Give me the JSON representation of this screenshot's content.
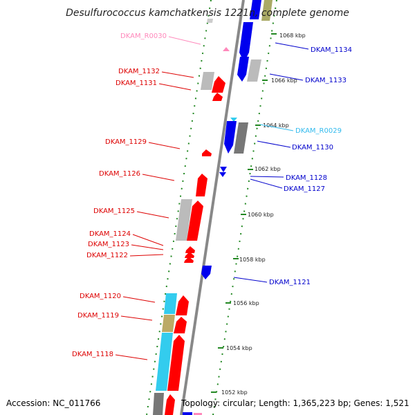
{
  "title": "Desulfurococcus kamchatkensis 1221n, complete genome",
  "footer": {
    "accession": "Accession: NC_011766",
    "info": "Topology: circular; Length: 1,365,223 bp; Genes: 1,521"
  },
  "colors": {
    "red": "#ff0000",
    "blue": "#0000ee",
    "pink": "#ff88bb",
    "cyan": "#33ccee",
    "gray": "#bbbbbb",
    "darkgray": "#777777",
    "olive": "#bbaa66",
    "green": "#228822",
    "red_label": "#dd0000",
    "blue_label": "#0000cc",
    "pink_label": "#ff88bb",
    "cyan_label": "#33bbee"
  },
  "kbp_ticks": [
    "1068 kbp",
    "1066 kbp",
    "1064 kbp",
    "1062 kbp",
    "1060 kbp",
    "1058 kbp",
    "1056 kbp",
    "1054 kbp",
    "1052 kbp"
  ],
  "left_labels": [
    {
      "text": "DKAM_R0030",
      "color": "pink_label"
    },
    {
      "text": "DKAM_1132",
      "color": "red_label"
    },
    {
      "text": "DKAM_1131",
      "color": "red_label"
    },
    {
      "text": "DKAM_1129",
      "color": "red_label"
    },
    {
      "text": "DKAM_1126",
      "color": "red_label"
    },
    {
      "text": "DKAM_1125",
      "color": "red_label"
    },
    {
      "text": "DKAM_1124",
      "color": "red_label"
    },
    {
      "text": "DKAM_1123",
      "color": "red_label"
    },
    {
      "text": "DKAM_1122",
      "color": "red_label"
    },
    {
      "text": "DKAM_1120",
      "color": "red_label"
    },
    {
      "text": "DKAM_1119",
      "color": "red_label"
    },
    {
      "text": "DKAM_1118",
      "color": "red_label"
    }
  ],
  "right_labels": [
    {
      "text": "DKAM_1134",
      "color": "blue_label"
    },
    {
      "text": "DKAM_1133",
      "color": "blue_label"
    },
    {
      "text": "DKAM_R0029",
      "color": "cyan_label"
    },
    {
      "text": "DKAM_1130",
      "color": "blue_label"
    },
    {
      "text": "DKAM_1128",
      "color": "blue_label"
    },
    {
      "text": "DKAM_1127",
      "color": "blue_label"
    },
    {
      "text": "DKAM_1121",
      "color": "blue_label"
    }
  ]
}
